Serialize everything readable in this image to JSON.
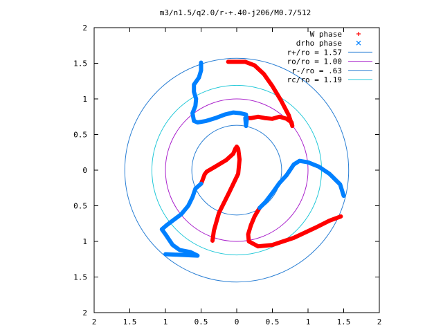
{
  "chart_data": {
    "type": "scatter",
    "title": "m3/n1.5/q2.0/r-+.40-j206/M0.7/512",
    "xlim": [
      -2,
      2
    ],
    "ylim": [
      -2,
      2
    ],
    "x_tick_labels": [
      "2",
      "1.5",
      "1",
      "0.5",
      "0",
      "0.5",
      "1",
      "1.5",
      "2"
    ],
    "y_tick_labels": [
      "2",
      "1.5",
      "1",
      "0.5",
      "0",
      "0.5",
      "1",
      "1.5",
      "2"
    ],
    "grid": false,
    "legend": {
      "placement": "top-right",
      "entries": [
        {
          "label": "W phase",
          "symbol": "+",
          "color": "#ff0000"
        },
        {
          "label": "drho phase",
          "symbol": "x",
          "color": "#0080ff"
        },
        {
          "label": "r+/ro = 1.57",
          "symbol": "line",
          "color": "#2a7fd4"
        },
        {
          "label": "ro/ro = 1.00",
          "symbol": "line",
          "color": "#aa22cc"
        },
        {
          "label": "r-/ro = .63",
          "symbol": "line",
          "color": "#2a7fd4"
        },
        {
          "label": "rc/ro = 1.19",
          "symbol": "line",
          "color": "#22c8d8"
        }
      ]
    },
    "circles": [
      {
        "name": "r+/ro",
        "radius": 1.57,
        "color": "#2a7fd4"
      },
      {
        "name": "ro/ro",
        "radius": 1.0,
        "color": "#aa22cc"
      },
      {
        "name": "r-/ro",
        "radius": 0.63,
        "color": "#2a7fd4"
      },
      {
        "name": "rc/ro",
        "radius": 1.19,
        "color": "#22c8d8"
      }
    ],
    "series": [
      {
        "name": "W phase",
        "color": "#ff0000",
        "marker": "+",
        "arms": [
          [
            [
              0.12,
              0.73
            ],
            [
              0.2,
              0.73
            ],
            [
              0.3,
              0.75
            ],
            [
              0.4,
              0.73
            ],
            [
              0.5,
              0.72
            ],
            [
              0.6,
              0.75
            ],
            [
              0.7,
              0.72
            ],
            [
              0.77,
              0.67
            ],
            [
              0.78,
              0.62
            ],
            [
              0.73,
              0.77
            ],
            [
              0.62,
              0.98
            ],
            [
              0.5,
              1.18
            ],
            [
              0.38,
              1.35
            ],
            [
              0.25,
              1.47
            ],
            [
              0.12,
              1.52
            ],
            [
              -0.12,
              1.52
            ]
          ],
          [
            [
              -0.5,
              -0.19
            ],
            [
              -0.48,
              -0.14
            ],
            [
              -0.45,
              -0.06
            ],
            [
              -0.42,
              -0.02
            ],
            [
              -0.3,
              0.05
            ],
            [
              -0.15,
              0.14
            ],
            [
              -0.05,
              0.23
            ],
            [
              -0.02,
              0.3
            ],
            [
              0.0,
              0.33
            ],
            [
              0.02,
              0.3
            ],
            [
              0.04,
              0.15
            ],
            [
              0.02,
              -0.05
            ],
            [
              -0.1,
              -0.3
            ],
            [
              -0.25,
              -0.6
            ],
            [
              -0.32,
              -0.85
            ],
            [
              -0.34,
              -0.99
            ]
          ],
          [
            [
              0.32,
              -0.53
            ],
            [
              0.25,
              -0.65
            ],
            [
              0.2,
              -0.77
            ],
            [
              0.16,
              -0.9
            ],
            [
              0.17,
              -1.0
            ],
            [
              0.3,
              -1.07
            ],
            [
              0.5,
              -1.05
            ],
            [
              0.8,
              -0.95
            ],
            [
              1.1,
              -0.81
            ],
            [
              1.3,
              -0.71
            ],
            [
              1.46,
              -0.65
            ]
          ]
        ]
      },
      {
        "name": "drho phase",
        "color": "#0080ff",
        "marker": "x",
        "arms": [
          [
            [
              0.12,
              0.73
            ],
            [
              0.13,
              0.62
            ],
            [
              0.14,
              0.7
            ],
            [
              0.13,
              0.78
            ],
            [
              0.05,
              0.8
            ],
            [
              -0.05,
              0.81
            ],
            [
              -0.17,
              0.78
            ],
            [
              -0.3,
              0.73
            ],
            [
              -0.43,
              0.69
            ],
            [
              -0.55,
              0.67
            ],
            [
              -0.6,
              0.69
            ],
            [
              -0.62,
              0.8
            ],
            [
              -0.58,
              0.9
            ],
            [
              -0.57,
              1.0
            ],
            [
              -0.6,
              1.1
            ],
            [
              -0.6,
              1.2
            ],
            [
              -0.53,
              1.3
            ],
            [
              -0.5,
              1.4
            ],
            [
              -0.5,
              1.51
            ]
          ],
          [
            [
              -0.5,
              -0.19
            ],
            [
              -0.58,
              -0.26
            ],
            [
              -0.62,
              -0.38
            ],
            [
              -0.68,
              -0.5
            ],
            [
              -0.78,
              -0.62
            ],
            [
              -0.9,
              -0.71
            ],
            [
              -0.98,
              -0.77
            ],
            [
              -1.05,
              -0.83
            ],
            [
              -1.0,
              -0.9
            ],
            [
              -0.9,
              -1.05
            ],
            [
              -0.8,
              -1.12
            ],
            [
              -0.65,
              -1.15
            ],
            [
              -0.55,
              -1.2
            ],
            [
              -1.0,
              -1.18
            ]
          ],
          [
            [
              0.32,
              -0.53
            ],
            [
              0.4,
              -0.45
            ],
            [
              0.5,
              -0.32
            ],
            [
              0.6,
              -0.18
            ],
            [
              0.7,
              -0.07
            ],
            [
              0.8,
              0.08
            ],
            [
              0.88,
              0.13
            ],
            [
              1.0,
              0.11
            ],
            [
              1.15,
              0.05
            ],
            [
              1.3,
              -0.05
            ],
            [
              1.45,
              -0.2
            ],
            [
              1.5,
              -0.36
            ]
          ]
        ]
      }
    ]
  }
}
